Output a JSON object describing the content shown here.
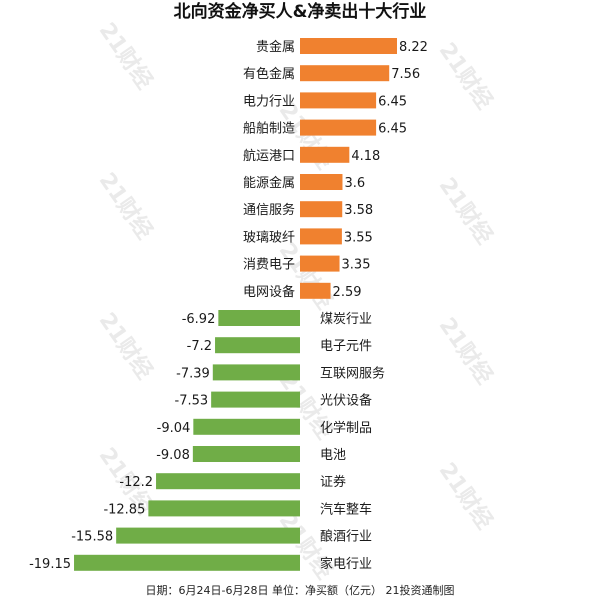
{
  "chart_data": {
    "type": "bar",
    "orientation": "horizontal",
    "title": "北向资金净买人&净卖出十大行业",
    "categories": [
      "贵金属",
      "有色金属",
      "电力行业",
      "船舶制造",
      "航运港口",
      "能源金属",
      "通信服务",
      "玻璃玻纤",
      "消费电子",
      "电网设备",
      "煤炭行业",
      "电子元件",
      "互联网服务",
      "光伏设备",
      "化学制品",
      "电池",
      "证券",
      "汽车整车",
      "酿酒行业",
      "家电行业"
    ],
    "values": [
      8.22,
      7.56,
      6.45,
      6.45,
      4.18,
      3.6,
      3.58,
      3.55,
      3.35,
      2.59,
      -6.92,
      -7.2,
      -7.39,
      -7.53,
      -9.04,
      -9.08,
      -12.2,
      -12.85,
      -15.58,
      -19.15
    ],
    "value_labels": [
      "8.22",
      "7.56",
      "6.45",
      "6.45",
      "4.18",
      "3.6",
      "3.58",
      "3.55",
      "3.35",
      "2.59",
      "-6.92",
      "-7.2",
      "-7.39",
      "-7.53",
      "-9.04",
      "-9.08",
      "-12.2",
      "-12.85",
      "-15.58",
      "-19.15"
    ],
    "colors": {
      "positive": "#F0812F",
      "negative": "#70AD47"
    },
    "footnote": "日期：6月24日-6月28日 单位：净买额（亿元） 21投资通制图",
    "watermark": "21财经",
    "grid": false,
    "legend": "none"
  }
}
